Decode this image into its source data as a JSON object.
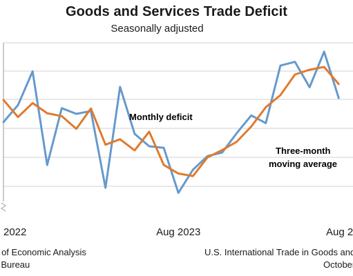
{
  "chart_data": {
    "type": "line",
    "title": "Goods and Services Trade Deficit",
    "subtitle": "Seasonally adjusted",
    "x_tick_labels": [
      "2022",
      "Aug 2023",
      "Aug 2"
    ],
    "x_tick_months": [
      0,
      12,
      24
    ],
    "grid": "horizontal",
    "series": [
      {
        "name": "Monthly deficit",
        "color": "#6699cc",
        "values": [
          25.0,
          19.6,
          9.0,
          38.5,
          20.6,
          22.4,
          21.5,
          45.7,
          13.9,
          28.7,
          32.6,
          33.1,
          47.3,
          40.0,
          35.7,
          34.6,
          28.5,
          22.9,
          25.3,
          7.2,
          6.0,
          14.0,
          2.8,
          17.4
        ]
      },
      {
        "name": "Three-month moving average",
        "color": "#e07a2e",
        "values": [
          18.0,
          23.4,
          19.0,
          22.2,
          23.1,
          27.1,
          20.7,
          32.1,
          30.4,
          33.9,
          28.0,
          38.5,
          41.2,
          42.0,
          36.1,
          33.8,
          31.2,
          26.4,
          20.3,
          16.5,
          10.0,
          8.5,
          7.6,
          13.0
        ]
      }
    ],
    "annotations": {
      "monthly": "Monthly deficit",
      "moving_avg_line1": "Three-month",
      "moving_avg_line2": "moving average"
    }
  },
  "footer": {
    "left_line1": "au of Economic Analysis",
    "left_line2": "us Bureau",
    "right_line1": "U.S. International Trade in Goods and",
    "right_line2": "October"
  },
  "colors": {
    "monthly": "#6699cc",
    "moving_average": "#e07a2e",
    "grid": "#d0d0d0"
  }
}
